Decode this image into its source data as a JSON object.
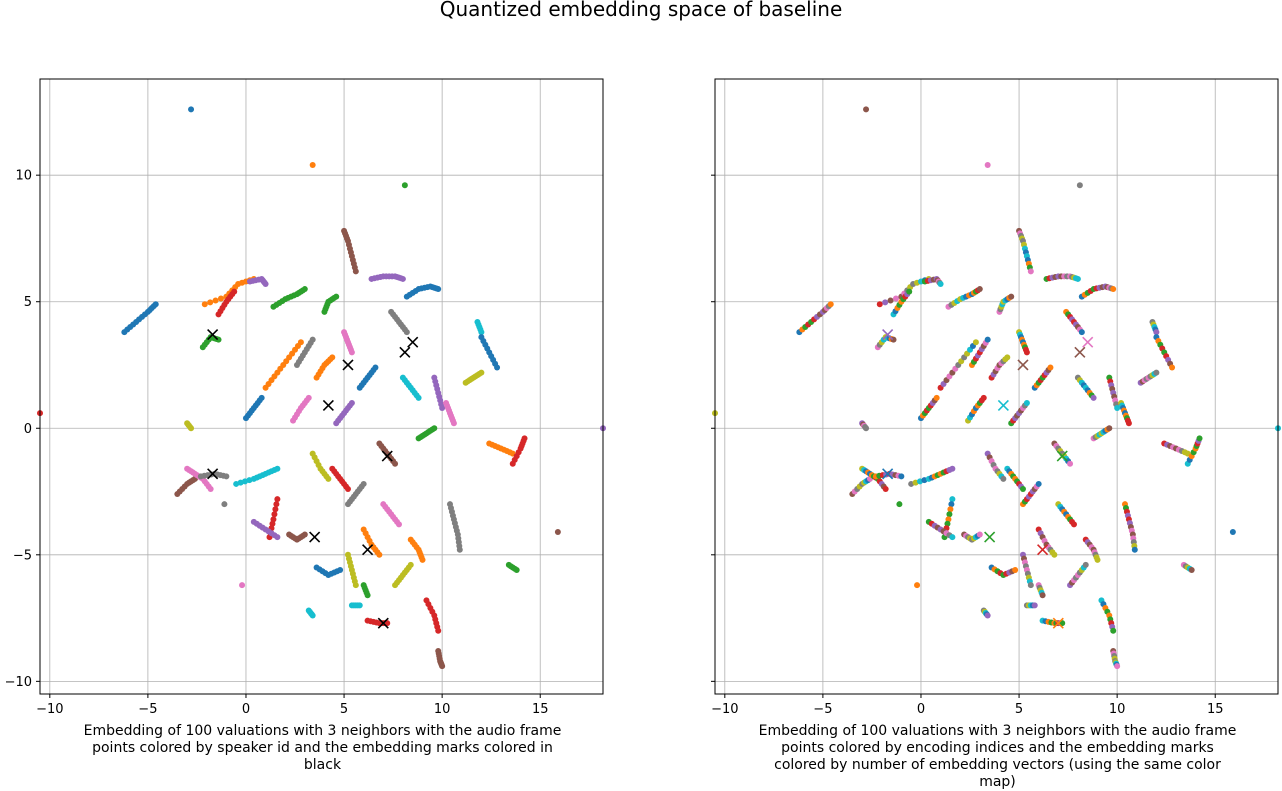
{
  "figure": {
    "title": "Quantized embedding space of baseline"
  },
  "chart_data": [
    {
      "type": "scatter",
      "caption": "Embedding of 100 valuations with 3 neighbors with the audio frame points colored by speaker id and the embedding marks colored in black",
      "xlim": [
        -10.5,
        18.2
      ],
      "ylim": [
        -10.5,
        13.8
      ],
      "xticks": [
        -10,
        -5,
        0,
        5,
        10,
        15
      ],
      "yticks": [
        -10,
        -5,
        0,
        5,
        10
      ],
      "xtick_labels": [
        "−10",
        "−5",
        "0",
        "5",
        "10",
        "15"
      ],
      "ytick_labels": [
        "−10",
        "−5",
        "0",
        "5",
        "10"
      ],
      "grid": true,
      "point_coloring": "speaker id",
      "marker_color": "#000000",
      "embedding_marks": [
        [
          -1.7,
          3.7
        ],
        [
          -1.7,
          -1.8
        ],
        [
          3.5,
          -4.3
        ],
        [
          4.2,
          0.9
        ],
        [
          5.2,
          2.5
        ],
        [
          6.2,
          -4.8
        ],
        [
          7.0,
          -7.7
        ],
        [
          7.2,
          -1.1
        ],
        [
          8.1,
          3.0
        ],
        [
          8.5,
          3.4
        ]
      ]
    },
    {
      "type": "scatter",
      "caption": "Embedding of 100 valuations with 3 neighbors with the audio frame points colored by encoding indices and the embedding marks colored by number of embedding vectors (using the same color map)",
      "xlim": [
        -10.5,
        18.2
      ],
      "ylim": [
        -10.5,
        13.8
      ],
      "xticks": [
        -10,
        -5,
        0,
        5,
        10,
        15
      ],
      "yticks": [
        -10,
        -5,
        0,
        5,
        10
      ],
      "xtick_labels": [
        "−10",
        "−5",
        "0",
        "5",
        "10",
        "15"
      ],
      "grid": true,
      "point_coloring": "encoding indices",
      "embedding_marks": [
        [
          -1.7,
          3.7
        ],
        [
          -1.7,
          -1.8
        ],
        [
          3.5,
          -4.3
        ],
        [
          4.2,
          0.9
        ],
        [
          5.2,
          2.5
        ],
        [
          6.2,
          -4.8
        ],
        [
          7.0,
          -7.7
        ],
        [
          7.2,
          -1.1
        ],
        [
          8.1,
          3.0
        ],
        [
          8.5,
          3.4
        ]
      ],
      "embedding_mark_colors": [
        "#9467bd",
        "#1f77b4",
        "#2ca02c",
        "#17becf",
        "#8c564b",
        "#d62728",
        "#ff7f0e",
        "#2ca02c",
        "#8c564b",
        "#e377c2"
      ]
    }
  ],
  "shared_points": {
    "isolated": [
      [
        -2.8,
        12.6
      ],
      [
        3.4,
        10.4
      ],
      [
        8.1,
        9.6
      ],
      [
        -10.5,
        0.6
      ],
      [
        18.2,
        0.0
      ],
      [
        15.9,
        -4.1
      ],
      [
        -0.2,
        -6.2
      ],
      [
        -1.1,
        -3.0
      ]
    ],
    "strands": [
      [
        [
          -6.2,
          3.8
        ],
        [
          -5.6,
          4.2
        ],
        [
          -5.0,
          4.6
        ],
        [
          -4.6,
          4.9
        ]
      ],
      [
        [
          -2.1,
          4.9
        ],
        [
          -1.0,
          5.2
        ],
        [
          -0.4,
          5.7
        ],
        [
          0.4,
          5.9
        ]
      ],
      [
        [
          -2.2,
          3.2
        ],
        [
          -1.8,
          3.6
        ],
        [
          -1.4,
          3.5
        ]
      ],
      [
        [
          -1.4,
          4.5
        ],
        [
          -1.0,
          5.0
        ],
        [
          -0.6,
          5.4
        ]
      ],
      [
        [
          0.2,
          5.8
        ],
        [
          0.8,
          5.9
        ],
        [
          1.0,
          5.7
        ]
      ],
      [
        [
          -3.5,
          -2.6
        ],
        [
          -3.0,
          -2.2
        ],
        [
          -2.6,
          -2.0
        ]
      ],
      [
        [
          -3.0,
          -1.6
        ],
        [
          -2.6,
          -1.8
        ],
        [
          -2.2,
          -2.0
        ],
        [
          -1.8,
          -2.4
        ]
      ],
      [
        [
          -2.3,
          -1.9
        ],
        [
          -1.6,
          -1.8
        ],
        [
          -1.0,
          -1.9
        ]
      ],
      [
        [
          -3.0,
          0.2
        ],
        [
          -2.8,
          0.0
        ]
      ],
      [
        [
          -0.5,
          -2.2
        ],
        [
          0.4,
          -2.0
        ],
        [
          1.0,
          -1.8
        ],
        [
          1.6,
          -1.6
        ]
      ],
      [
        [
          0.0,
          0.4
        ],
        [
          0.4,
          0.8
        ],
        [
          0.8,
          1.2
        ]
      ],
      [
        [
          1.0,
          1.6
        ],
        [
          1.6,
          2.2
        ],
        [
          2.2,
          2.8
        ],
        [
          2.8,
          3.4
        ]
      ],
      [
        [
          1.4,
          4.8
        ],
        [
          2.0,
          5.1
        ],
        [
          2.6,
          5.3
        ],
        [
          3.0,
          5.5
        ]
      ],
      [
        [
          1.6,
          -2.8
        ],
        [
          1.4,
          -3.6
        ],
        [
          1.2,
          -4.3
        ]
      ],
      [
        [
          0.4,
          -3.7
        ],
        [
          1.0,
          -4.0
        ],
        [
          1.6,
          -4.3
        ]
      ],
      [
        [
          2.2,
          -4.2
        ],
        [
          2.6,
          -4.4
        ],
        [
          3.0,
          -4.2
        ]
      ],
      [
        [
          2.4,
          0.3
        ],
        [
          2.8,
          0.8
        ],
        [
          3.2,
          1.2
        ]
      ],
      [
        [
          2.6,
          2.5
        ],
        [
          3.0,
          3.0
        ],
        [
          3.4,
          3.5
        ]
      ],
      [
        [
          3.4,
          -1.0
        ],
        [
          3.8,
          -1.6
        ],
        [
          4.2,
          -2.0
        ]
      ],
      [
        [
          3.2,
          -7.2
        ],
        [
          3.4,
          -7.4
        ]
      ],
      [
        [
          3.6,
          -5.5
        ],
        [
          4.2,
          -5.8
        ],
        [
          4.8,
          -5.6
        ]
      ],
      [
        [
          3.6,
          2.0
        ],
        [
          4.0,
          2.5
        ],
        [
          4.4,
          2.8
        ]
      ],
      [
        [
          4.0,
          4.6
        ],
        [
          4.2,
          5.0
        ],
        [
          4.6,
          5.2
        ]
      ],
      [
        [
          4.4,
          -1.6
        ],
        [
          4.8,
          -2.0
        ],
        [
          5.2,
          -2.4
        ]
      ],
      [
        [
          4.6,
          0.2
        ],
        [
          5.0,
          0.6
        ],
        [
          5.4,
          1.0
        ]
      ],
      [
        [
          5.0,
          7.8
        ],
        [
          5.2,
          7.4
        ],
        [
          5.4,
          6.8
        ],
        [
          5.6,
          6.2
        ]
      ],
      [
        [
          5.0,
          3.8
        ],
        [
          5.2,
          3.4
        ],
        [
          5.4,
          3.0
        ]
      ],
      [
        [
          5.2,
          -3.0
        ],
        [
          5.6,
          -2.6
        ],
        [
          6.0,
          -2.2
        ]
      ],
      [
        [
          5.2,
          -5.0
        ],
        [
          5.4,
          -5.6
        ],
        [
          5.6,
          -6.2
        ]
      ],
      [
        [
          5.4,
          -7.0
        ],
        [
          5.8,
          -7.0
        ]
      ],
      [
        [
          5.8,
          1.6
        ],
        [
          6.2,
          2.0
        ],
        [
          6.6,
          2.4
        ]
      ],
      [
        [
          6.0,
          -4.0
        ],
        [
          6.4,
          -4.6
        ],
        [
          6.8,
          -5.0
        ]
      ],
      [
        [
          6.0,
          -6.2
        ],
        [
          6.2,
          -6.6
        ]
      ],
      [
        [
          6.2,
          -7.6
        ],
        [
          6.8,
          -7.7
        ],
        [
          7.2,
          -7.7
        ]
      ],
      [
        [
          6.4,
          5.9
        ],
        [
          7.0,
          6.0
        ],
        [
          7.6,
          6.0
        ],
        [
          8.0,
          5.9
        ]
      ],
      [
        [
          6.8,
          -0.6
        ],
        [
          7.2,
          -1.0
        ],
        [
          7.6,
          -1.4
        ]
      ],
      [
        [
          7.0,
          -3.0
        ],
        [
          7.4,
          -3.4
        ],
        [
          7.8,
          -3.8
        ]
      ],
      [
        [
          7.4,
          4.6
        ],
        [
          7.8,
          4.2
        ],
        [
          8.2,
          3.8
        ]
      ],
      [
        [
          7.6,
          -6.2
        ],
        [
          8.0,
          -5.8
        ],
        [
          8.4,
          -5.4
        ]
      ],
      [
        [
          8.0,
          2.0
        ],
        [
          8.4,
          1.6
        ],
        [
          8.8,
          1.2
        ]
      ],
      [
        [
          8.2,
          5.2
        ],
        [
          8.8,
          5.5
        ],
        [
          9.4,
          5.6
        ],
        [
          9.8,
          5.5
        ]
      ],
      [
        [
          8.4,
          -4.4
        ],
        [
          8.8,
          -4.8
        ],
        [
          9.0,
          -5.2
        ]
      ],
      [
        [
          8.8,
          -0.4
        ],
        [
          9.2,
          -0.2
        ],
        [
          9.6,
          0.0
        ]
      ],
      [
        [
          9.2,
          -6.8
        ],
        [
          9.6,
          -7.4
        ],
        [
          9.8,
          -8.0
        ]
      ],
      [
        [
          9.6,
          2.0
        ],
        [
          9.8,
          1.4
        ],
        [
          10.0,
          0.8
        ]
      ],
      [
        [
          9.8,
          -8.8
        ],
        [
          9.9,
          -9.2
        ],
        [
          10.0,
          -9.4
        ]
      ],
      [
        [
          10.2,
          1.0
        ],
        [
          10.4,
          0.6
        ],
        [
          10.6,
          0.2
        ]
      ],
      [
        [
          10.4,
          -3.0
        ],
        [
          10.6,
          -3.6
        ],
        [
          10.8,
          -4.2
        ],
        [
          10.9,
          -4.8
        ]
      ],
      [
        [
          11.2,
          1.8
        ],
        [
          11.6,
          2.0
        ],
        [
          12.0,
          2.2
        ]
      ],
      [
        [
          11.8,
          4.2
        ],
        [
          12.0,
          3.8
        ]
      ],
      [
        [
          12.0,
          3.6
        ],
        [
          12.4,
          3.0
        ],
        [
          12.8,
          2.4
        ]
      ],
      [
        [
          12.4,
          -0.6
        ],
        [
          13.0,
          -0.8
        ],
        [
          13.6,
          -1.0
        ]
      ],
      [
        [
          13.4,
          -5.4
        ],
        [
          13.8,
          -5.6
        ]
      ],
      [
        [
          13.6,
          -1.4
        ],
        [
          14.0,
          -0.8
        ],
        [
          14.2,
          -0.4
        ]
      ]
    ],
    "palette": [
      "#1f77b4",
      "#ff7f0e",
      "#2ca02c",
      "#d62728",
      "#9467bd",
      "#8c564b",
      "#e377c2",
      "#7f7f7f",
      "#bcbd22",
      "#17becf"
    ]
  }
}
